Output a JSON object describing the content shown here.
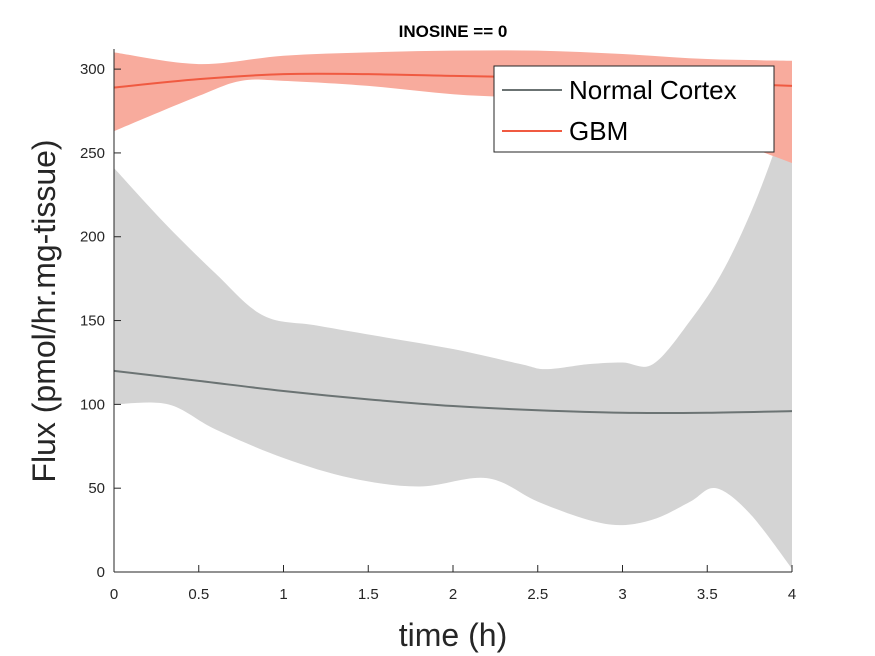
{
  "chart_data": {
    "type": "line",
    "title": "INOSINE == 0",
    "xlabel": "time (h)",
    "ylabel": "Flux (pmol/hr.mg-tissue)",
    "xlim": [
      0,
      4
    ],
    "ylim": [
      0,
      312
    ],
    "xticks": [
      0,
      0.5,
      1,
      1.5,
      2,
      2.5,
      3,
      3.5,
      4
    ],
    "xtick_labels": [
      "0",
      "0.5",
      "1",
      "1.5",
      "2",
      "2.5",
      "3",
      "3.5",
      "4"
    ],
    "yticks": [
      0,
      50,
      100,
      150,
      200,
      250,
      300
    ],
    "ytick_labels": [
      "0",
      "50",
      "100",
      "150",
      "200",
      "250",
      "300"
    ],
    "grid": false,
    "legend_position": "top-right",
    "series": [
      {
        "name": "Normal Cortex",
        "color": "#6b7373",
        "band_color": "#d4d4d4",
        "x": [
          0,
          0.5,
          1,
          1.5,
          2,
          2.5,
          3,
          3.5,
          4
        ],
        "values": [
          120,
          114,
          108,
          103,
          99,
          96.5,
          95,
          95,
          96
        ],
        "band_upper_x": [
          0,
          0.3,
          0.6,
          0.88,
          1.2,
          1.6,
          2.0,
          2.4,
          2.55,
          2.8,
          3.0,
          3.18,
          3.4,
          3.6,
          3.8,
          4
        ],
        "band_upper": [
          241,
          208,
          178,
          153,
          147,
          140,
          133,
          124,
          121,
          124,
          125,
          124,
          150,
          181,
          225,
          281
        ],
        "band_lower_x": [
          0,
          0.32,
          0.6,
          1.0,
          1.4,
          1.8,
          2.2,
          2.5,
          2.8,
          3.0,
          3.2,
          3.4,
          3.55,
          3.75,
          4
        ],
        "band_lower": [
          100,
          100,
          85,
          68,
          56,
          51,
          56,
          42,
          31,
          28,
          32,
          42,
          50,
          35,
          2
        ]
      },
      {
        "name": "GBM",
        "color": "#f05a41",
        "band_color": "#f8ab9d",
        "x": [
          0,
          0.5,
          1,
          1.5,
          2,
          2.5,
          3,
          3.5,
          4
        ],
        "values": [
          289,
          294,
          297,
          297,
          296,
          295,
          294,
          292,
          290
        ],
        "band_upper_x": [
          0,
          0.5,
          1,
          1.5,
          2,
          2.5,
          3,
          3.5,
          4
        ],
        "band_upper": [
          310,
          303,
          308,
          310,
          311,
          311,
          309,
          306,
          305
        ],
        "band_lower_x": [
          0,
          0.5,
          0.75,
          1,
          1.5,
          2,
          2.5,
          3,
          3.5,
          4
        ],
        "band_lower": [
          263,
          284,
          293,
          293,
          290,
          285,
          282,
          275,
          262,
          244
        ]
      }
    ]
  }
}
